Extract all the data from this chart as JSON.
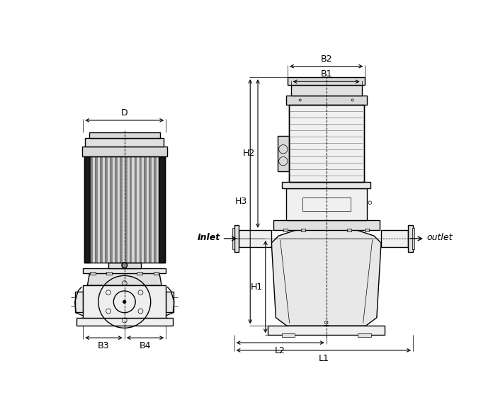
{
  "bg_color": "#ffffff",
  "line_color": "#000000",
  "lw_main": 1.0,
  "lw_thick": 1.5,
  "lw_thin": 0.5,
  "v1cx": 113,
  "v2cx": 483,
  "labels": {
    "D": "D",
    "B1": "B1",
    "B2": "B2",
    "B3": "B3",
    "B4": "B4",
    "H1": "H1",
    "H2": "H2",
    "H3": "H3",
    "L1": "L1",
    "L2": "L2",
    "Inlet": "Inlet",
    "outlet": "outlet"
  }
}
